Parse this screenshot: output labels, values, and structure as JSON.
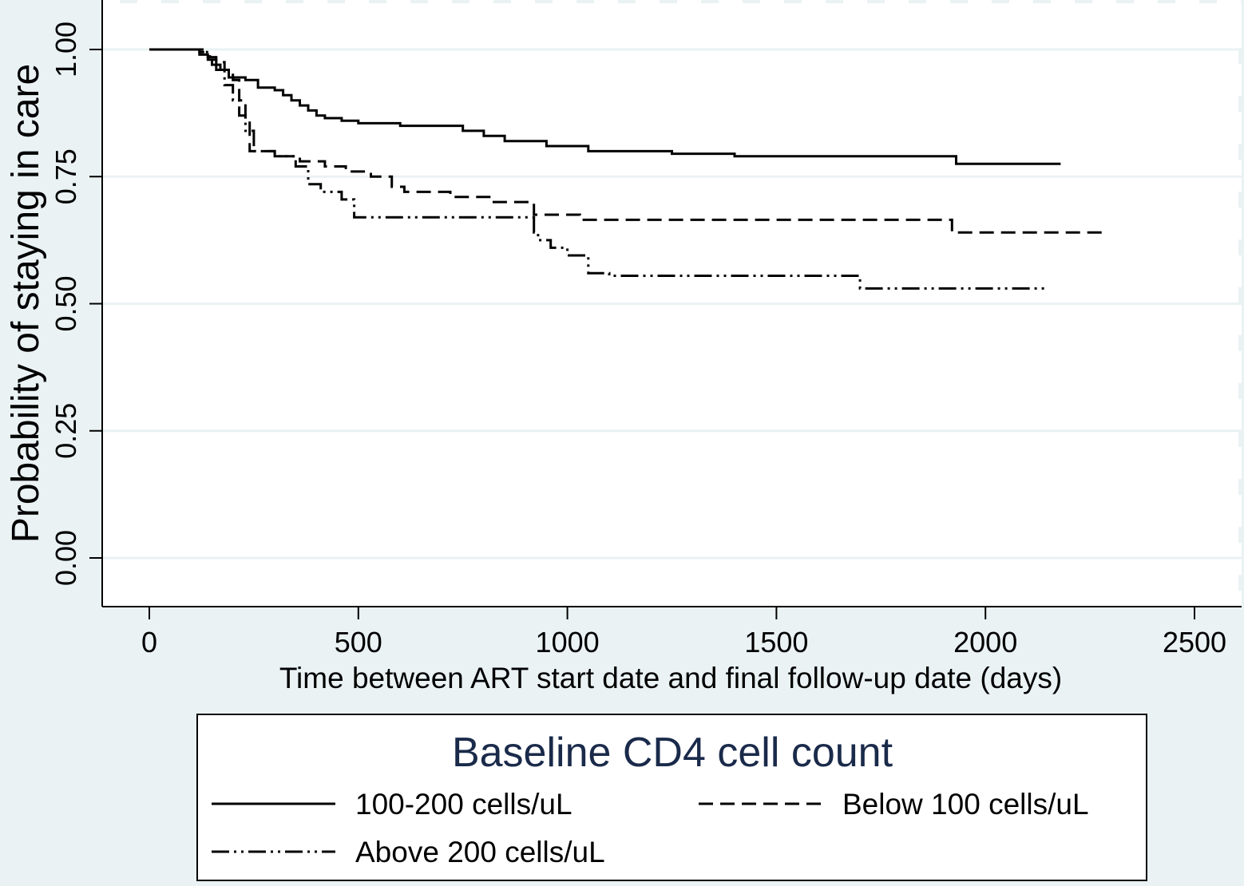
{
  "chart_data": {
    "type": "line",
    "title": "",
    "xlabel": "Time between ART start date and final follow-up date (days)",
    "ylabel": "Probability of staying in care",
    "xlim": [
      -110,
      2620
    ],
    "ylim": [
      -0.09,
      1.09
    ],
    "xticks": [
      0,
      500,
      1000,
      1500,
      2000,
      2500
    ],
    "yticks": [
      0.0,
      0.25,
      0.5,
      0.75,
      1.0
    ],
    "xtick_labels": [
      "0",
      "500",
      "1000",
      "1500",
      "2000",
      "2500"
    ],
    "ytick_labels": [
      "0.00",
      "0.25",
      "0.50",
      "0.75",
      "1.00"
    ],
    "grid": "horizontal",
    "step": true,
    "legend": {
      "title": "Baseline CD4 cell count",
      "position": "bottom",
      "columns": 2
    },
    "colors": {
      "background": "#eaf2f3",
      "plot_area": "#ffffff",
      "gridline": "#eaf2f3",
      "line": "#000000",
      "legend_title": "#1a2a4a"
    },
    "series": [
      {
        "name": "100-200 cells/uL",
        "style": "solid",
        "x": [
          0,
          120,
          140,
          150,
          170,
          190,
          230,
          260,
          300,
          320,
          340,
          360,
          380,
          400,
          420,
          460,
          500,
          600,
          750,
          800,
          850,
          950,
          1050,
          1250,
          1400,
          1930,
          2180
        ],
        "y": [
          1.0,
          0.99,
          0.98,
          0.97,
          0.96,
          0.945,
          0.94,
          0.925,
          0.92,
          0.91,
          0.9,
          0.89,
          0.88,
          0.87,
          0.865,
          0.86,
          0.855,
          0.85,
          0.84,
          0.83,
          0.82,
          0.81,
          0.8,
          0.795,
          0.79,
          0.775,
          0.775
        ]
      },
      {
        "name": "Below 100 cells/uL",
        "style": "dashed",
        "x": [
          0,
          120,
          140,
          160,
          180,
          200,
          215,
          230,
          240,
          300,
          360,
          420,
          470,
          530,
          580,
          610,
          720,
          820,
          920,
          1030,
          1920,
          2290
        ],
        "y": [
          1.0,
          0.995,
          0.985,
          0.975,
          0.96,
          0.94,
          0.9,
          0.86,
          0.8,
          0.79,
          0.78,
          0.77,
          0.76,
          0.75,
          0.73,
          0.72,
          0.71,
          0.7,
          0.675,
          0.665,
          0.64,
          0.64
        ]
      },
      {
        "name": "Above 200 cells/uL",
        "style": "dash-dot-dot",
        "x": [
          0,
          130,
          145,
          160,
          180,
          200,
          215,
          230,
          250,
          300,
          350,
          380,
          410,
          460,
          490,
          800,
          920,
          930,
          960,
          1000,
          1050,
          1100,
          1690,
          1700,
          2150
        ],
        "y": [
          1.0,
          0.995,
          0.98,
          0.96,
          0.93,
          0.9,
          0.87,
          0.84,
          0.8,
          0.79,
          0.77,
          0.735,
          0.72,
          0.705,
          0.67,
          0.67,
          0.64,
          0.625,
          0.61,
          0.595,
          0.56,
          0.555,
          0.555,
          0.53,
          0.53
        ]
      }
    ]
  }
}
